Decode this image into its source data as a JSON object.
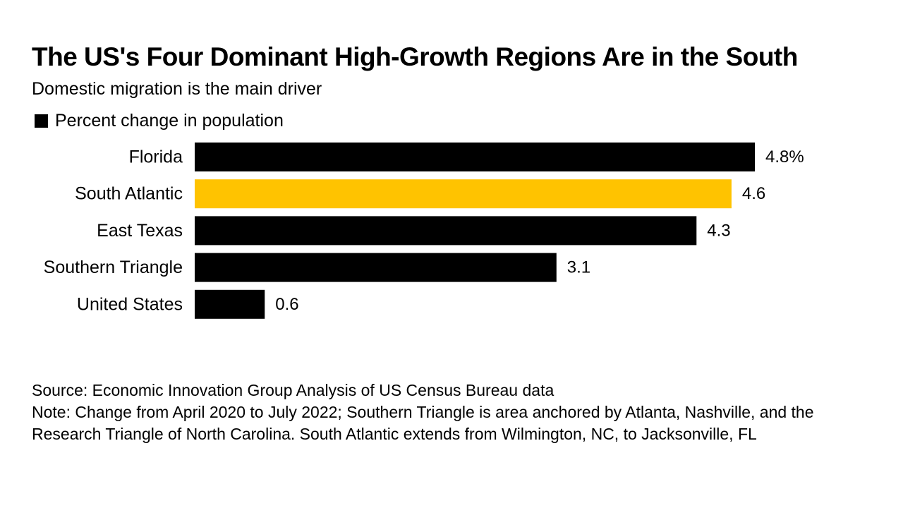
{
  "header": {
    "title": "The US's Four Dominant High-Growth Regions Are in the South",
    "subtitle": "Domestic migration is the main driver"
  },
  "legend": {
    "label": "Percent change in population"
  },
  "chart_data": {
    "type": "bar",
    "orientation": "horizontal",
    "title": "The US's Four Dominant High-Growth Regions Are in the South",
    "subtitle": "Domestic migration is the main driver",
    "categories": [
      "Florida",
      "South Atlantic",
      "East Texas",
      "Southern Triangle",
      "United States"
    ],
    "values": [
      4.8,
      4.6,
      4.3,
      3.1,
      0.6
    ],
    "value_labels": [
      "4.8%",
      "4.6",
      "4.3",
      "3.1",
      "0.6"
    ],
    "colors": [
      "#000000",
      "#FFC300",
      "#000000",
      "#000000",
      "#000000"
    ],
    "series": [
      {
        "name": "Percent change in population",
        "values": [
          4.8,
          4.6,
          4.3,
          3.1,
          0.6
        ]
      }
    ],
    "xlim": [
      0,
      4.8
    ],
    "grid": false,
    "legend_position": "top-left"
  },
  "footer": {
    "source": "Source: Economic Innovation Group Analysis of US Census Bureau data",
    "note": "Note: Change from April 2020 to July 2022; Southern Triangle is area anchored by Atlanta, Nashville, and the Research Triangle of North Carolina. South Atlantic extends from Wilmington, NC, to Jacksonville, FL"
  }
}
